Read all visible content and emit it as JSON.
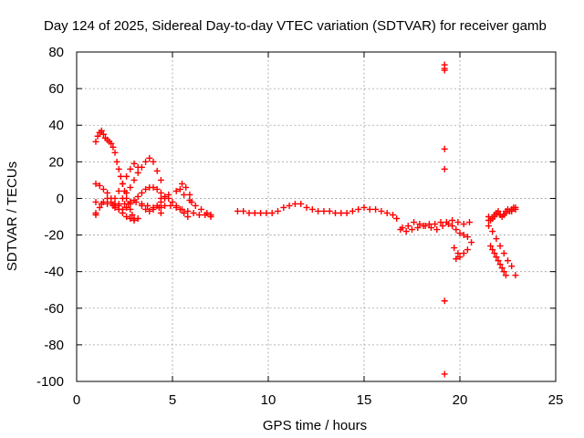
{
  "chart_data": {
    "type": "scatter",
    "title": "Day 124 of 2025, Sidereal Day-to-day VTEC variation (SDTVAR) for receiver gamb",
    "xlabel": "GPS time / hours",
    "ylabel": "SDTVAR / TECUs",
    "xlim": [
      0,
      25
    ],
    "ylim": [
      -100,
      80
    ],
    "xticks": [
      0,
      5,
      10,
      15,
      20,
      25
    ],
    "yticks": [
      -100,
      -80,
      -60,
      -40,
      -20,
      0,
      20,
      40,
      60,
      80
    ],
    "xtick_labels": [
      "0",
      "5",
      "10",
      "15",
      "20",
      "25"
    ],
    "ytick_labels": [
      "-100",
      "-80",
      "-60",
      "-40",
      "-20",
      "0",
      "20",
      "40",
      "60",
      "80"
    ],
    "grid": true,
    "marker": "+",
    "series": [
      {
        "name": "SDTVAR",
        "color": "#ff0000",
        "x": [
          1.0,
          1.1,
          1.2,
          1.3,
          1.4,
          1.5,
          1.6,
          1.7,
          1.8,
          1.9,
          2.0,
          2.1,
          2.2,
          2.3,
          2.4,
          2.5,
          2.6,
          2.7,
          2.8,
          2.9,
          3.0,
          2.0,
          2.2,
          2.4,
          2.6,
          2.8,
          3.0,
          3.2,
          1.0,
          1.2,
          1.4,
          1.6,
          1.8,
          2.0,
          2.2,
          2.4,
          2.6,
          2.8,
          3.0,
          3.2,
          2.0,
          2.2,
          2.4,
          2.6,
          2.8,
          3.0,
          3.2,
          3.4,
          3.6,
          3.8,
          4.0,
          4.2,
          4.4,
          3.4,
          3.6,
          3.8,
          4.0,
          4.2,
          4.4,
          4.6,
          1.0,
          1.2,
          1.4,
          1.6,
          1.8,
          2.0,
          2.2,
          2.4,
          2.6,
          2.8,
          3.0,
          3.2,
          3.4,
          3.6,
          3.8,
          4.0,
          4.2,
          4.4,
          4.6,
          4.8,
          5.0,
          5.2,
          5.4,
          5.6,
          5.8,
          1.0,
          1.3,
          1.6,
          1.9,
          2.2,
          2.5,
          2.8,
          3.1,
          3.4,
          3.7,
          4.0,
          4.3,
          4.6,
          4.9,
          5.2,
          5.5,
          5.8,
          6.1,
          6.4,
          6.7,
          7.0,
          4.4,
          4.8,
          5.2,
          5.6,
          5.9,
          6.2,
          6.5,
          6.8,
          7.0,
          5.4,
          5.5,
          5.7,
          5.9,
          6.0,
          1.0,
          4.4,
          4.4,
          8.4,
          8.7,
          9.0,
          9.3,
          9.6,
          9.9,
          10.2,
          10.5,
          10.8,
          11.1,
          11.4,
          11.7,
          12.0,
          12.3,
          12.6,
          12.9,
          13.2,
          13.5,
          13.8,
          14.1,
          14.4,
          14.7,
          15.0,
          15.3,
          15.6,
          15.9,
          16.2,
          16.5,
          16.7,
          16.9,
          17.2,
          17.5,
          17.8,
          18.1,
          18.4,
          18.7,
          19.0,
          19.3,
          19.6,
          19.9,
          20.2,
          20.5,
          17.0,
          17.3,
          17.6,
          17.9,
          18.2,
          18.5,
          18.8,
          19.1,
          19.4,
          19.6,
          19.8,
          20.0,
          20.2,
          20.4,
          19.8,
          20.0,
          20.2,
          20.4,
          20.6,
          19.7,
          19.9,
          19.2,
          19.2,
          19.2,
          19.2,
          19.2,
          19.2,
          19.2,
          21.5,
          21.7,
          21.9,
          22.1,
          22.3,
          22.5,
          22.7,
          22.9,
          21.5,
          21.8,
          22.1,
          22.4,
          22.7,
          22.9,
          21.5,
          21.6,
          21.7,
          21.8,
          21.9,
          22.0,
          22.1,
          22.2,
          22.3,
          22.4,
          22.5,
          22.6,
          22.7,
          22.8,
          22.9,
          21.6,
          21.7,
          21.8,
          21.9,
          22.0,
          22.1,
          22.2,
          22.3,
          22.4
        ],
        "y": [
          31,
          34,
          36,
          37,
          35,
          33,
          32,
          31,
          30,
          28,
          25,
          20,
          16,
          12,
          8,
          4,
          0,
          -3,
          -6,
          -9,
          -11,
          0,
          4,
          8,
          12,
          16,
          19,
          17,
          8,
          7,
          5,
          3,
          0,
          -3,
          -6,
          -8,
          -10,
          -11,
          -12,
          -11,
          -5,
          -3,
          0,
          3,
          6,
          10,
          14,
          17,
          20,
          22,
          20,
          15,
          10,
          -4,
          -6,
          -7,
          -6,
          -4,
          -2,
          0,
          -8,
          -5,
          -2,
          0,
          -2,
          -4,
          -6,
          -6,
          -5,
          -3,
          -1,
          1,
          3,
          5,
          6,
          6,
          5,
          3,
          1,
          0,
          -2,
          -4,
          -6,
          -8,
          -10,
          -2,
          -3,
          -3,
          -4,
          -4,
          -3,
          -2,
          -2,
          -3,
          -4,
          -5,
          -5,
          -4,
          -4,
          -5,
          -6,
          -7,
          -8,
          -9,
          -9,
          -10,
          0,
          2,
          4,
          2,
          -1,
          -4,
          -6,
          -8,
          -9,
          5,
          8,
          6,
          2,
          -2,
          -9,
          -8,
          -5,
          -7,
          -7,
          -8,
          -8,
          -8,
          -8,
          -8,
          -7,
          -5,
          -4,
          -3,
          -3,
          -5,
          -6,
          -7,
          -7,
          -7,
          -8,
          -8,
          -8,
          -7,
          -6,
          -5,
          -6,
          -6,
          -7,
          -8,
          -9,
          -11,
          -17,
          -18,
          -17,
          -16,
          -15,
          -14,
          -14,
          -13,
          -13,
          -12,
          -13,
          -14,
          -13,
          -16,
          -15,
          -13,
          -14,
          -15,
          -16,
          -17,
          -15,
          -14,
          -15,
          -17,
          -19,
          -20,
          -21,
          -33,
          -32,
          -30,
          -28,
          -24,
          -27,
          -30,
          73,
          71,
          70,
          27,
          16,
          -56,
          -96,
          -15,
          -18,
          -22,
          -26,
          -30,
          -34,
          -37,
          -42,
          -12,
          -10,
          -9,
          -8,
          -7,
          -6,
          -10,
          -12,
          -11,
          -9,
          -8,
          -7,
          -9,
          -10,
          -9,
          -7,
          -6,
          -7,
          -6,
          -5,
          -5,
          -26,
          -28,
          -30,
          -32,
          -34,
          -36,
          -38,
          -40,
          -42
        ]
      }
    ]
  }
}
